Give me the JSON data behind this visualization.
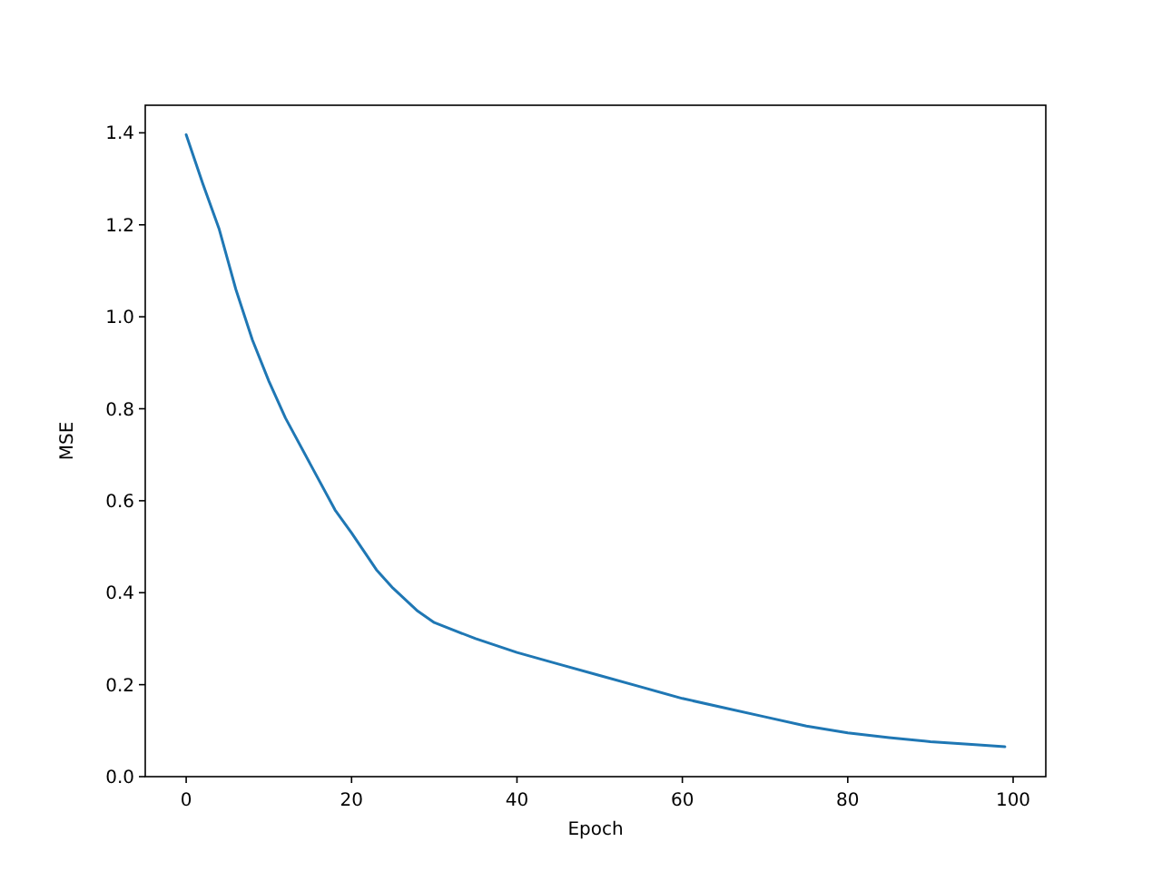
{
  "chart_data": {
    "type": "line",
    "xlabel": "Epoch",
    "ylabel": "MSE",
    "x": [
      0,
      2,
      4,
      6,
      8,
      10,
      12,
      15,
      18,
      20,
      23,
      25,
      28,
      30,
      35,
      40,
      45,
      50,
      55,
      60,
      65,
      70,
      75,
      80,
      85,
      90,
      95,
      99
    ],
    "series": [
      {
        "color": "#1f77b4",
        "values": [
          1.396,
          1.29,
          1.19,
          1.06,
          0.95,
          0.86,
          0.78,
          0.68,
          0.58,
          0.53,
          0.45,
          0.41,
          0.36,
          0.335,
          0.3,
          0.27,
          0.245,
          0.22,
          0.195,
          0.17,
          0.15,
          0.13,
          0.11,
          0.095,
          0.085,
          0.076,
          0.07,
          0.065
        ]
      }
    ],
    "xlim": [
      -4.95,
      103.95
    ],
    "ylim": [
      0,
      1.46
    ],
    "xticks": [
      0,
      20,
      40,
      60,
      80,
      100
    ],
    "yticks": [
      {
        "value": 0,
        "label": "0.0"
      },
      0.2,
      0.4,
      0.6,
      0.8,
      {
        "value": 1,
        "label": "1.0"
      },
      1.2,
      1.4
    ],
    "grid": false,
    "line_style": "solid",
    "marker": "none"
  }
}
